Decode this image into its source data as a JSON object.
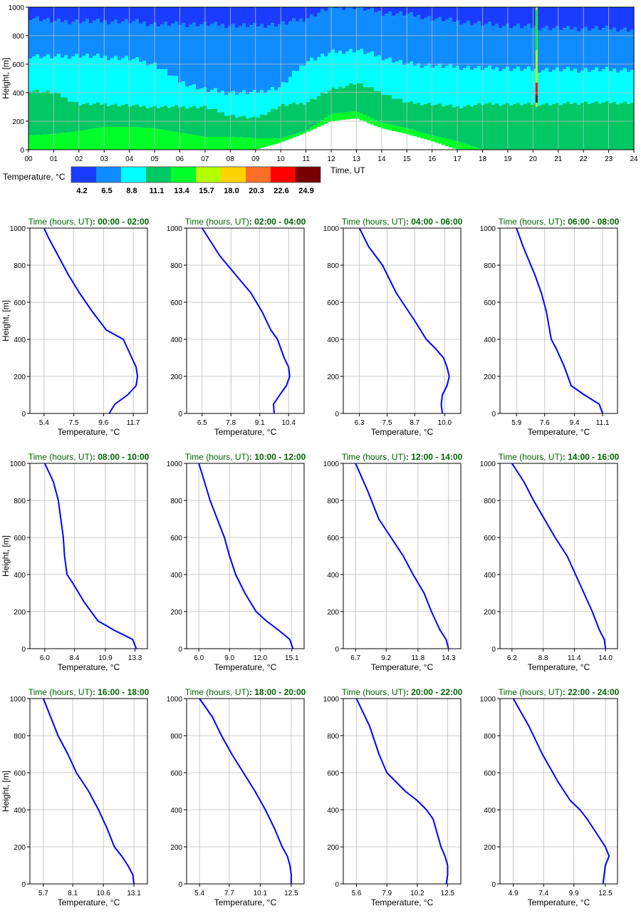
{
  "chart_data": [
    {
      "type": "heatmap",
      "xlabel": "Time, UT",
      "ylabel": "Height, [m]",
      "x_ticks": [
        "00",
        "01",
        "02",
        "03",
        "04",
        "05",
        "06",
        "07",
        "08",
        "09",
        "10",
        "11",
        "12",
        "13",
        "14",
        "15",
        "16",
        "17",
        "18",
        "19",
        "20",
        "21",
        "22",
        "23",
        "24"
      ],
      "y_ticks": [
        "0",
        "200",
        "400",
        "600",
        "800",
        "1000"
      ],
      "xlim": [
        0,
        24
      ],
      "ylim": [
        0,
        1000
      ],
      "grid": true,
      "colorbar": {
        "label": "Temperature, °C",
        "colors": [
          "#1a3cff",
          "#0f8cff",
          "#00ffff",
          "#00c864",
          "#00ff28",
          "#b4ff00",
          "#ffd200",
          "#ff6e28",
          "#ff0000",
          "#780000"
        ],
        "tick_labels": [
          "4.2",
          "6.5",
          "8.8",
          "11.1",
          "13.4",
          "15.7",
          "18.0",
          "20.3",
          "22.6",
          "24.9"
        ]
      },
      "bands": [
        {
          "name": "4.2-6.5 top",
          "upper": [
            1000,
            1000,
            1000,
            1000,
            1000,
            1000,
            1000,
            1000,
            1000,
            1000,
            1000,
            1000,
            1000,
            1000,
            1000,
            1000,
            1000,
            1000,
            1000,
            1000,
            1000,
            1000,
            1000,
            1000,
            1000
          ]
        },
        {
          "boundaries": {
            "hours": [
              0,
              1,
              2,
              3,
              4,
              5,
              6,
              7,
              8,
              9,
              10,
              11,
              12,
              13,
              14,
              15,
              16,
              17,
              18,
              19,
              20,
              21,
              22,
              23,
              24
            ],
            "b_4_2": [
              930,
              900,
              900,
              900,
              900,
              880,
              880,
              880,
              870,
              870,
              880,
              920,
              1000,
              1000,
              960,
              950,
              920,
              900,
              880,
              870,
              860,
              850,
              850,
              850,
              840
            ],
            "b_6_5": [
              660,
              650,
              660,
              650,
              640,
              600,
              480,
              420,
              400,
              400,
              440,
              620,
              680,
              700,
              650,
              600,
              590,
              580,
              570,
              570,
              560,
              560,
              560,
              560,
              560
            ],
            "b_8_8": [
              420,
              400,
              320,
              320,
              310,
              300,
              300,
              300,
              240,
              220,
              310,
              330,
              420,
              470,
              400,
              330,
              320,
              300,
              320,
              320,
              320,
              320,
              330,
              330,
              330
            ],
            "b_11_1": [
              100,
              110,
              130,
              160,
              160,
              150,
              120,
              90,
              90,
              80,
              80,
              130,
              250,
              270,
              190,
              150,
              100,
              60,
              0,
              0,
              0,
              0,
              0,
              0,
              0
            ],
            "b_13_4": [
              0,
              0,
              0,
              0,
              0,
              0,
              0,
              0,
              0,
              0,
              50,
              120,
              200,
              220,
              150,
              110,
              60,
              0,
              0,
              0,
              0,
              0,
              0,
              0,
              0
            ]
          }
        }
      ],
      "spike": {
        "hour": 20.1,
        "color_levels": [
          "#b4ff00",
          "#00ff28",
          "#ff0000",
          "#780000"
        ]
      }
    },
    {
      "type": "line",
      "title_prefix": "Time (hours, UT)",
      "title_range": ": 00:00 - 02:00",
      "xlabel": "Temperature, °C",
      "ylabel": "Height, [m]",
      "x_ticks": [
        "5.4",
        "7.5",
        "9.6",
        "11.7"
      ],
      "xlim": [
        4.4,
        12.7
      ],
      "ylim": [
        0,
        1000
      ],
      "y_ticks": [
        "0",
        "200",
        "400",
        "600",
        "800",
        "1000"
      ],
      "series": [
        {
          "x": [
            10.0,
            10.4,
            11.3,
            11.9,
            12.0,
            11.9,
            11.6,
            11.0,
            9.8,
            8.8,
            7.9,
            7.1,
            6.4,
            5.7,
            5.4
          ],
          "y": [
            0,
            50,
            100,
            150,
            200,
            250,
            300,
            400,
            450,
            550,
            650,
            750,
            850,
            950,
            1000
          ]
        }
      ]
    },
    {
      "type": "line",
      "title_prefix": "Time (hours, UT)",
      "title_range": ": 02:00 - 04:00",
      "xlabel": "Temperature, °C",
      "ylabel": "Height, [m]",
      "x_ticks": [
        "6.5",
        "7.8",
        "9.1",
        "10.4"
      ],
      "xlim": [
        5.8,
        11.1
      ],
      "ylim": [
        0,
        1000
      ],
      "y_ticks": [
        "0",
        "200",
        "400",
        "600",
        "800",
        "1000"
      ],
      "series": [
        {
          "x": [
            9.75,
            9.72,
            10.0,
            10.3,
            10.45,
            10.4,
            10.2,
            9.9,
            9.6,
            9.2,
            8.7,
            8.0,
            7.3,
            6.5
          ],
          "y": [
            0,
            50,
            100,
            150,
            200,
            250,
            300,
            400,
            450,
            550,
            650,
            750,
            850,
            1000
          ]
        }
      ]
    },
    {
      "type": "line",
      "title_prefix": "Time (hours, UT)",
      "title_range": ": 04:00 - 06:00",
      "xlabel": "Temperature, °C",
      "ylabel": "Height, [m]",
      "x_ticks": [
        "6.3",
        "7.5",
        "8.7",
        "10.0"
      ],
      "xlim": [
        5.6,
        10.7
      ],
      "ylim": [
        0,
        1000
      ],
      "y_ticks": [
        "0",
        "200",
        "400",
        "600",
        "800",
        "1000"
      ],
      "series": [
        {
          "x": [
            9.9,
            9.85,
            9.9,
            10.1,
            10.2,
            10.1,
            9.95,
            9.6,
            9.2,
            8.7,
            7.9,
            7.3,
            6.7,
            6.3
          ],
          "y": [
            0,
            50,
            100,
            150,
            200,
            250,
            300,
            350,
            400,
            500,
            650,
            800,
            900,
            1000
          ]
        }
      ]
    },
    {
      "type": "line",
      "title_prefix": "Time (hours, UT)",
      "title_range": ": 06:00 - 08:00",
      "xlabel": "Temperature, °C",
      "ylabel": "Height, [m]",
      "x_ticks": [
        "5.9",
        "7.6",
        "9.4",
        "11.1"
      ],
      "xlim": [
        4.9,
        12.0
      ],
      "ylim": [
        0,
        1000
      ],
      "y_ticks": [
        "0",
        "200",
        "400",
        "600",
        "800",
        "1000"
      ],
      "series": [
        {
          "x": [
            11.1,
            10.9,
            10.0,
            9.2,
            8.8,
            8.3,
            8.0,
            7.7,
            7.4,
            7.0,
            6.3,
            5.9
          ],
          "y": [
            0,
            50,
            100,
            150,
            250,
            350,
            400,
            550,
            650,
            750,
            900,
            1000
          ]
        }
      ]
    },
    {
      "type": "line",
      "title_prefix": "Time (hours, UT)",
      "title_range": ": 08:00 - 10:00",
      "xlabel": "Temperature, °C",
      "ylabel": "Height, [m]",
      "x_ticks": [
        "6.0",
        "8.4",
        "10.9",
        "13.3"
      ],
      "xlim": [
        4.8,
        14.3
      ],
      "ylim": [
        0,
        1000
      ],
      "y_ticks": [
        "0",
        "200",
        "400",
        "600",
        "800",
        "1000"
      ],
      "series": [
        {
          "x": [
            13.4,
            13.1,
            11.6,
            10.3,
            9.2,
            8.3,
            7.8,
            7.6,
            7.5,
            7.3,
            7.1,
            6.7,
            6.0
          ],
          "y": [
            0,
            50,
            100,
            150,
            250,
            350,
            400,
            500,
            600,
            700,
            800,
            900,
            1000
          ]
        }
      ]
    },
    {
      "type": "line",
      "title_prefix": "Time (hours, UT)",
      "title_range": ": 10:00 - 12:00",
      "xlabel": "Temperature, °C",
      "ylabel": "Height, [m]",
      "x_ticks": [
        "6.0",
        "9.0",
        "12.0",
        "15.1"
      ],
      "xlim": [
        4.8,
        16.3
      ],
      "ylim": [
        0,
        1000
      ],
      "y_ticks": [
        "0",
        "200",
        "400",
        "600",
        "800",
        "1000"
      ],
      "series": [
        {
          "x": [
            15.2,
            14.9,
            13.8,
            12.6,
            11.6,
            10.5,
            9.6,
            9.0,
            8.5,
            7.8,
            7.1,
            6.0
          ],
          "y": [
            0,
            50,
            100,
            150,
            200,
            300,
            400,
            500,
            600,
            700,
            800,
            1000
          ]
        }
      ]
    },
    {
      "type": "line",
      "title_prefix": "Time (hours, UT)",
      "title_range": ": 12:00 - 14:00",
      "xlabel": "Temperature, °C",
      "ylabel": "Height, [m]",
      "x_ticks": [
        "6.7",
        "9.2",
        "11.8",
        "14.3"
      ],
      "xlim": [
        5.7,
        15.3
      ],
      "ylim": [
        0,
        1000
      ],
      "y_ticks": [
        "0",
        "200",
        "400",
        "600",
        "800",
        "1000"
      ],
      "series": [
        {
          "x": [
            14.3,
            14.1,
            13.6,
            12.9,
            12.3,
            11.4,
            10.6,
            9.6,
            8.6,
            7.7,
            6.7
          ],
          "y": [
            0,
            50,
            100,
            200,
            300,
            400,
            500,
            600,
            700,
            850,
            1000
          ]
        }
      ]
    },
    {
      "type": "line",
      "title_prefix": "Time (hours, UT)",
      "title_range": ": 14:00 - 16:00",
      "xlabel": "Temperature, °C",
      "ylabel": "Height, [m]",
      "x_ticks": [
        "6.2",
        "8.8",
        "11.4",
        "14.0"
      ],
      "xlim": [
        5.2,
        15.0
      ],
      "ylim": [
        0,
        1000
      ],
      "y_ticks": [
        "0",
        "200",
        "400",
        "600",
        "800",
        "1000"
      ],
      "series": [
        {
          "x": [
            14.0,
            13.9,
            13.5,
            12.9,
            12.2,
            11.5,
            10.8,
            9.8,
            8.9,
            8.0,
            7.2,
            6.2
          ],
          "y": [
            0,
            50,
            100,
            200,
            300,
            400,
            500,
            600,
            700,
            800,
            900,
            1000
          ]
        }
      ]
    },
    {
      "type": "line",
      "title_prefix": "Time (hours, UT)",
      "title_range": ": 16:00 - 18:00",
      "xlabel": "Temperature, °C",
      "ylabel": "Height, [m]",
      "x_ticks": [
        "5.7",
        "8.1",
        "10.6",
        "13.1"
      ],
      "xlim": [
        4.6,
        14.2
      ],
      "ylim": [
        0,
        1000
      ],
      "y_ticks": [
        "0",
        "200",
        "400",
        "600",
        "800",
        "1000"
      ],
      "series": [
        {
          "x": [
            13.1,
            13.0,
            12.6,
            12.1,
            11.5,
            10.9,
            10.2,
            9.4,
            8.4,
            7.7,
            6.9,
            5.7
          ],
          "y": [
            0,
            50,
            100,
            150,
            200,
            300,
            400,
            500,
            600,
            700,
            800,
            1000
          ]
        }
      ]
    },
    {
      "type": "line",
      "title_prefix": "Time (hours, UT)",
      "title_range": ": 18:00 - 20:00",
      "xlabel": "Temperature, °C",
      "ylabel": "Height, [m]",
      "x_ticks": [
        "5.4",
        "7.7",
        "10.1",
        "12.5"
      ],
      "xlim": [
        4.4,
        13.5
      ],
      "ylim": [
        0,
        1000
      ],
      "y_ticks": [
        "0",
        "200",
        "400",
        "600",
        "800",
        "1000"
      ],
      "series": [
        {
          "x": [
            12.5,
            12.5,
            12.4,
            12.2,
            11.8,
            11.2,
            10.5,
            9.7,
            8.8,
            7.9,
            7.1,
            6.4,
            5.4
          ],
          "y": [
            0,
            50,
            100,
            150,
            200,
            300,
            400,
            500,
            600,
            700,
            800,
            900,
            1000
          ]
        }
      ]
    },
    {
      "type": "line",
      "title_prefix": "Time (hours, UT)",
      "title_range": ": 20:00 - 22:00",
      "xlabel": "Temperature, °C",
      "ylabel": "Height, [m]",
      "x_ticks": [
        "5.6",
        "7.9",
        "10.2",
        "12.5"
      ],
      "xlim": [
        4.6,
        13.5
      ],
      "ylim": [
        0,
        1000
      ],
      "y_ticks": [
        "0",
        "200",
        "400",
        "600",
        "800",
        "1000"
      ],
      "series": [
        {
          "x": [
            12.4,
            12.5,
            12.5,
            12.3,
            12.0,
            11.8,
            11.6,
            11.4,
            10.9,
            10.2,
            9.3,
            8.6,
            7.9,
            7.3,
            6.6,
            5.6
          ],
          "y": [
            0,
            50,
            100,
            150,
            200,
            250,
            300,
            350,
            400,
            450,
            500,
            550,
            600,
            700,
            850,
            1000
          ]
        }
      ]
    },
    {
      "type": "line",
      "title_prefix": "Time (hours, UT)",
      "title_range": ": 22:00 - 24:00",
      "xlabel": "Temperature, °C",
      "ylabel": "Height, [m]",
      "x_ticks": [
        "4.9",
        "7.4",
        "9.9",
        "12.5"
      ],
      "xlim": [
        3.8,
        13.5
      ],
      "ylim": [
        0,
        1000
      ],
      "y_ticks": [
        "0",
        "200",
        "400",
        "600",
        "800",
        "1000"
      ],
      "series": [
        {
          "x": [
            12.3,
            12.4,
            12.5,
            12.8,
            12.5,
            12.0,
            11.5,
            11.0,
            10.4,
            9.6,
            8.6,
            7.3,
            6.2,
            4.9
          ],
          "y": [
            0,
            50,
            100,
            150,
            200,
            250,
            300,
            350,
            400,
            450,
            550,
            700,
            850,
            1000
          ]
        }
      ]
    }
  ]
}
